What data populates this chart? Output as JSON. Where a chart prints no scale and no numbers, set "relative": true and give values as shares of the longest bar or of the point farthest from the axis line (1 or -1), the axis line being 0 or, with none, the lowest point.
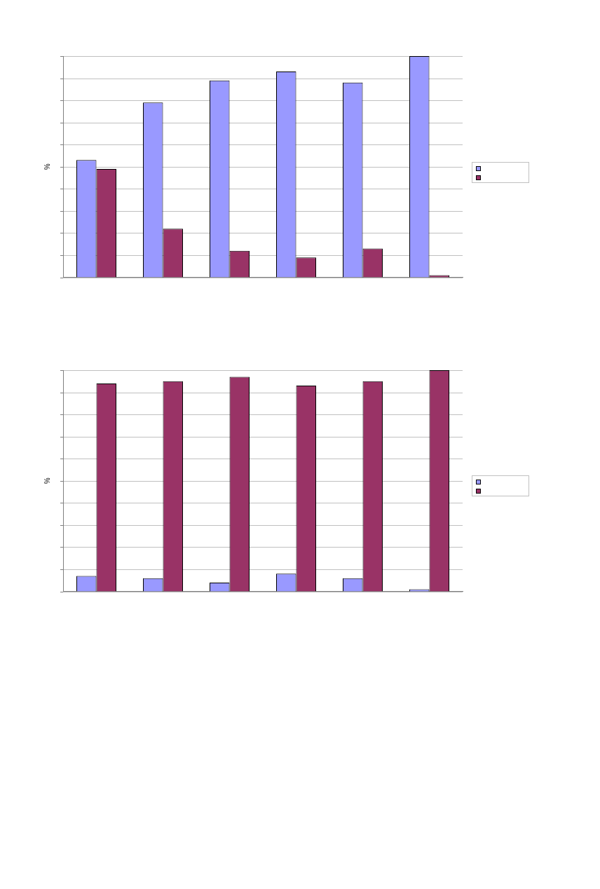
{
  "chart_data": [
    {
      "type": "bar",
      "ylabel": "%",
      "relative": true,
      "grid": "y",
      "categories": [
        null,
        null,
        null,
        null,
        null,
        null
      ],
      "series": [
        {
          "color": "#9999ff",
          "values": [
            0.53,
            0.79,
            0.89,
            0.93,
            0.88,
            1
          ]
        },
        {
          "color": "#993366",
          "values": [
            0.49,
            0.22,
            0.12,
            0.09,
            0.13,
            0.01
          ]
        }
      ]
    },
    {
      "type": "bar",
      "ylabel": "%",
      "relative": true,
      "grid": "y",
      "categories": [
        null,
        null,
        null,
        null,
        null,
        null
      ],
      "series": [
        {
          "color": "#9999ff",
          "values": [
            0.07,
            0.06,
            0.04,
            0.08,
            0.06,
            0.01
          ]
        },
        {
          "color": "#993366",
          "values": [
            0.94,
            0.95,
            0.97,
            0.93,
            0.95,
            1
          ]
        }
      ]
    }
  ]
}
